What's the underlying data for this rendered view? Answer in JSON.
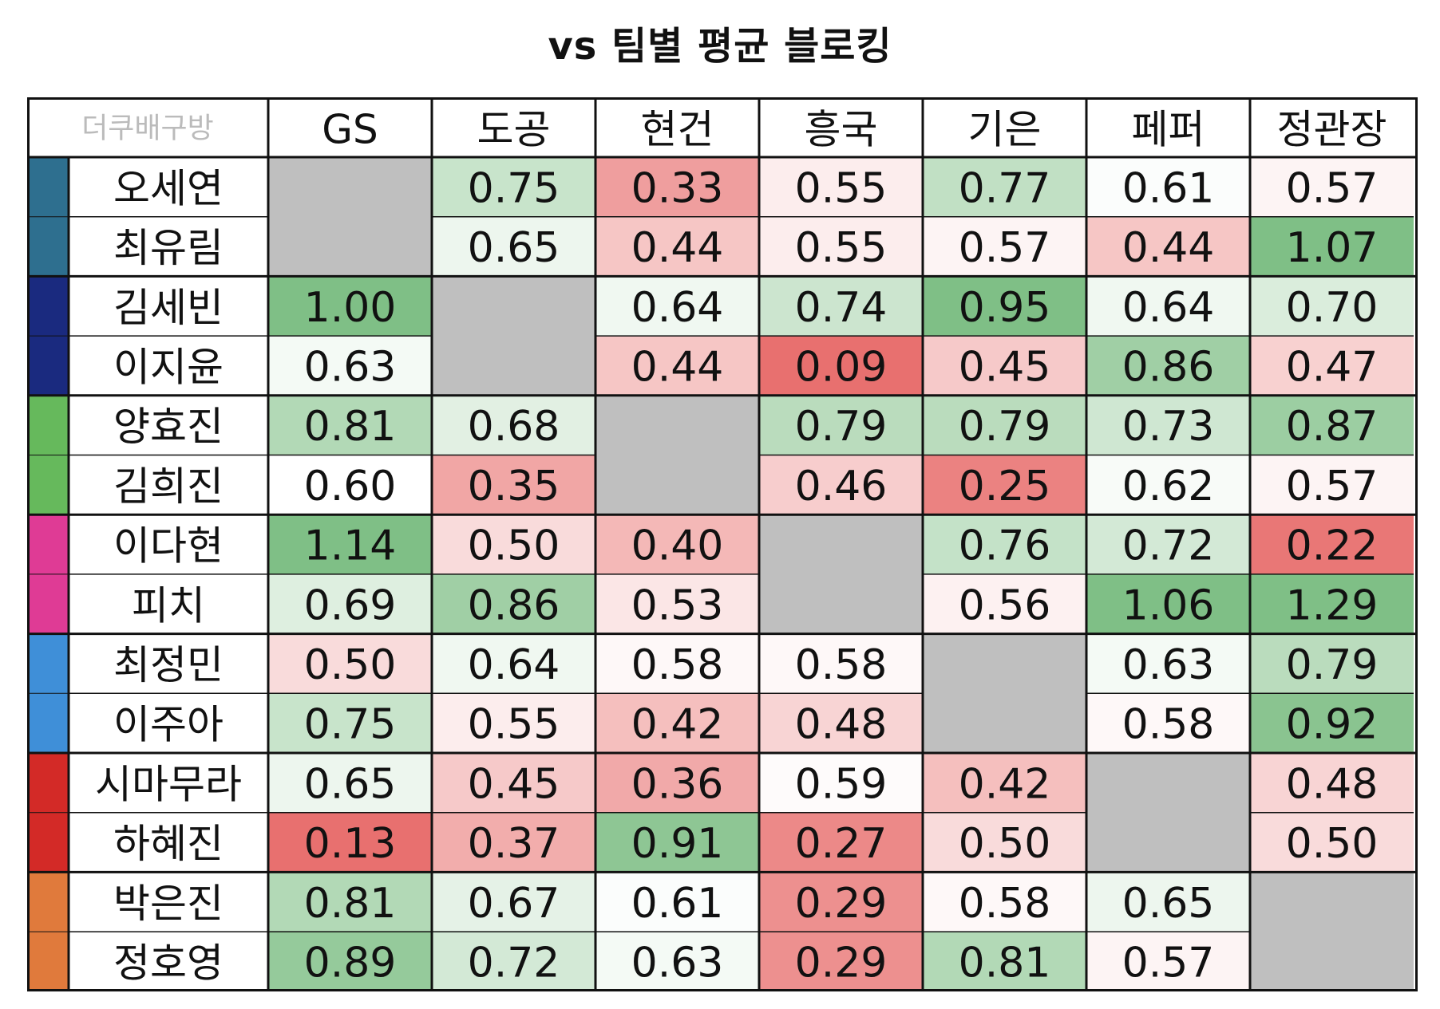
{
  "title": "vs 팀별 평균 블로킹",
  "corner_label": "더쿠배구방",
  "colors": {
    "high": "#7fbf86",
    "mid": "#ffffff",
    "low": "#e8706f",
    "na": "#bfbfbf",
    "border": "#111111",
    "corner_text": "#bbbbbb"
  },
  "team_colors": {
    "GS": "#2e6f8f",
    "도공": "#1a2a7f",
    "현건": "#66b95c",
    "흥국": "#df3b95",
    "기은": "#3f8fd8",
    "페퍼": "#d32a27",
    "정관장": "#e07a3c"
  },
  "chart_data": {
    "type": "heatmap",
    "title": "vs 팀별 평균 블로킹",
    "columns": [
      "GS",
      "도공",
      "현건",
      "흥국",
      "기은",
      "페퍼",
      "정관장"
    ],
    "rows": [
      {
        "player": "오세연",
        "team": "GS",
        "values": [
          null,
          0.75,
          0.33,
          0.55,
          0.77,
          0.61,
          0.57
        ]
      },
      {
        "player": "최유림",
        "team": "GS",
        "values": [
          null,
          0.65,
          0.44,
          0.55,
          0.57,
          0.44,
          1.07
        ]
      },
      {
        "player": "김세빈",
        "team": "도공",
        "values": [
          1.0,
          null,
          0.64,
          0.74,
          0.95,
          0.64,
          0.7
        ]
      },
      {
        "player": "이지윤",
        "team": "도공",
        "values": [
          0.63,
          null,
          0.44,
          0.09,
          0.45,
          0.86,
          0.47
        ]
      },
      {
        "player": "양효진",
        "team": "현건",
        "values": [
          0.81,
          0.68,
          null,
          0.79,
          0.79,
          0.73,
          0.87
        ]
      },
      {
        "player": "김희진",
        "team": "현건",
        "values": [
          0.6,
          0.35,
          null,
          0.46,
          0.25,
          0.62,
          0.57
        ]
      },
      {
        "player": "이다현",
        "team": "흥국",
        "values": [
          1.14,
          0.5,
          0.4,
          null,
          0.76,
          0.72,
          0.22
        ]
      },
      {
        "player": "피치",
        "team": "흥국",
        "values": [
          0.69,
          0.86,
          0.53,
          null,
          0.56,
          1.06,
          1.29
        ]
      },
      {
        "player": "최정민",
        "team": "기은",
        "values": [
          0.5,
          0.64,
          0.58,
          0.58,
          null,
          0.63,
          0.79
        ]
      },
      {
        "player": "이주아",
        "team": "기은",
        "values": [
          0.75,
          0.55,
          0.42,
          0.48,
          null,
          0.58,
          0.92
        ]
      },
      {
        "player": "시마무라",
        "team": "페퍼",
        "values": [
          0.65,
          0.45,
          0.36,
          0.59,
          0.42,
          null,
          0.48
        ]
      },
      {
        "player": "하혜진",
        "team": "페퍼",
        "values": [
          0.13,
          0.37,
          0.91,
          0.27,
          0.5,
          null,
          0.5
        ]
      },
      {
        "player": "박은진",
        "team": "정관장",
        "values": [
          0.81,
          0.67,
          0.61,
          0.29,
          0.58,
          0.65,
          null
        ]
      },
      {
        "player": "정호영",
        "team": "정관장",
        "values": [
          0.89,
          0.72,
          0.63,
          0.29,
          0.81,
          0.57,
          null
        ]
      }
    ]
  }
}
